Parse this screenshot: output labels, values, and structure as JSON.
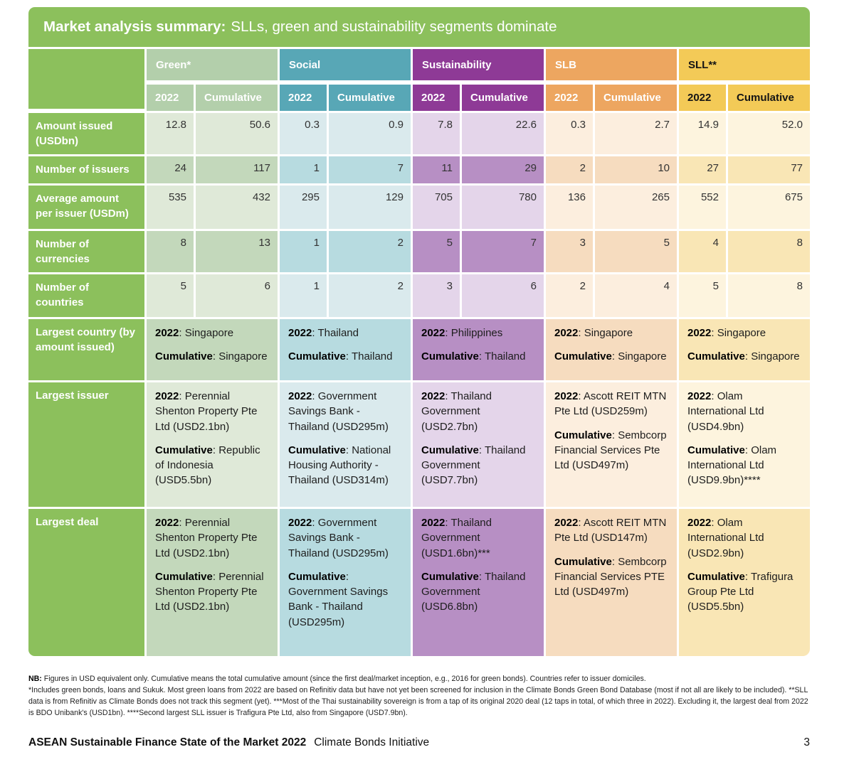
{
  "banner": {
    "bold": "Market analysis summary:",
    "regular": "SLLs, green and sustainability segments dominate"
  },
  "labels": {
    "y2022": "2022",
    "cumulative": "Cumulative",
    "sep": ": "
  },
  "columns": [
    {
      "label": "Green*",
      "color": "#b3cfab"
    },
    {
      "label": "Social",
      "color": "#58a7b6"
    },
    {
      "label": "Sustainability",
      "color": "#8e3a96"
    },
    {
      "label": "SLB",
      "color": "#eda660"
    },
    {
      "label": "SLL**",
      "color": "#f3ca57"
    }
  ],
  "accent_green": "#8cc05c",
  "metrics": [
    {
      "label": "Amount issued (USDbn)",
      "green": [
        "12.8",
        "50.6"
      ],
      "social": [
        "0.3",
        "0.9"
      ],
      "sustainability": [
        "7.8",
        "22.6"
      ],
      "slb": [
        "0.3",
        "2.7"
      ],
      "sll": [
        "14.9",
        "52.0"
      ]
    },
    {
      "label": "Number of issuers",
      "green": [
        "24",
        "117"
      ],
      "social": [
        "1",
        "7"
      ],
      "sustainability": [
        "11",
        "29"
      ],
      "slb": [
        "2",
        "10"
      ],
      "sll": [
        "27",
        "77"
      ]
    },
    {
      "label": "Average amount per issuer (USDm)",
      "green": [
        "535",
        "432"
      ],
      "social": [
        "295",
        "129"
      ],
      "sustainability": [
        "705",
        "780"
      ],
      "slb": [
        "136",
        "265"
      ],
      "sll": [
        "552",
        "675"
      ]
    },
    {
      "label": "Number of currencies",
      "green": [
        "8",
        "13"
      ],
      "social": [
        "1",
        "2"
      ],
      "sustainability": [
        "5",
        "7"
      ],
      "slb": [
        "3",
        "5"
      ],
      "sll": [
        "4",
        "8"
      ]
    },
    {
      "label": "Number of countries",
      "green": [
        "5",
        "6"
      ],
      "social": [
        "1",
        "2"
      ],
      "sustainability": [
        "3",
        "6"
      ],
      "slb": [
        "2",
        "4"
      ],
      "sll": [
        "5",
        "8"
      ]
    }
  ],
  "details": [
    {
      "label": "Largest country (by amount issued)",
      "green": {
        "y2022": "Singapore",
        "cumulative": "Singapore"
      },
      "social": {
        "y2022": "Thailand",
        "cumulative": "Thailand"
      },
      "sustainability": {
        "y2022": "Philippines",
        "cumulative": "Thailand"
      },
      "slb": {
        "y2022": "Singapore",
        "cumulative": "Singapore"
      },
      "sll": {
        "y2022": "Singapore",
        "cumulative": "Singapore"
      }
    },
    {
      "label": "Largest issuer",
      "green": {
        "y2022": "Perennial Shenton Property Pte Ltd (USD2.1bn)",
        "cumulative": "Republic of Indonesia (USD5.5bn)"
      },
      "social": {
        "y2022": "Government Savings Bank - Thailand (USD295m)",
        "cumulative": "National Housing Authority - Thailand (USD314m)"
      },
      "sustainability": {
        "y2022": "Thailand Government (USD2.7bn)",
        "cumulative": "Thailand Government (USD7.7bn)"
      },
      "slb": {
        "y2022": "Ascott REIT MTN Pte Ltd (USD259m)",
        "cumulative": "Sembcorp Financial Services Pte Ltd (USD497m)"
      },
      "sll": {
        "y2022": "Olam International Ltd (USD4.9bn)",
        "cumulative": "Olam International Ltd (USD9.9bn)****"
      }
    },
    {
      "label": "Largest deal",
      "green": {
        "y2022": "Perennial Shenton Property Pte Ltd (USD2.1bn)",
        "cumulative": "Perennial Shenton Property Pte Ltd (USD2.1bn)"
      },
      "social": {
        "y2022": "Government Savings Bank - Thailand (USD295m)",
        "cumulative": "Government Savings Bank - Thailand (USD295m)"
      },
      "sustainability": {
        "y2022": "Thailand Government (USD1.6bn)***",
        "cumulative": "Thailand Government (USD6.8bn)"
      },
      "slb": {
        "y2022": "Ascott REIT MTN Pte Ltd (USD147m)",
        "cumulative": "Sembcorp Financial Services PTE Ltd (USD497m)"
      },
      "sll": {
        "y2022": "Olam International Ltd (USD2.9bn)",
        "cumulative": "Trafigura Group Pte Ltd (USD5.5bn)"
      }
    }
  ],
  "notes": {
    "nb_label": "NB:",
    "nb_text": " Figures in USD equivalent only. Cumulative means the total cumulative amount (since the first deal/market inception, e.g., 2016 for green bonds). Countries refer to issuer domiciles.",
    "asterisk_text": "*Includes green bonds, loans and Sukuk. Most green loans from 2022 are based on Refinitiv data but have not yet been screened for inclusion in the Climate Bonds Green Bond Database (most if not all are likely to be included). **SLL data is from Refinitiv as Climate Bonds does not track this segment (yet). ***Most of the Thai sustainability sovereign is from a tap of its original 2020 deal (12 taps in total, of which three in 2022). Excluding it, the largest deal from 2022 is BDO Unibank's (USD1bn). ****Second largest SLL issuer is Trafigura Pte Ltd, also from Singapore (USD7.9bn)."
  },
  "footer": {
    "report": "ASEAN Sustainable Finance State of the Market 2022",
    "org": "Climate Bonds Initiative",
    "page": "3"
  }
}
